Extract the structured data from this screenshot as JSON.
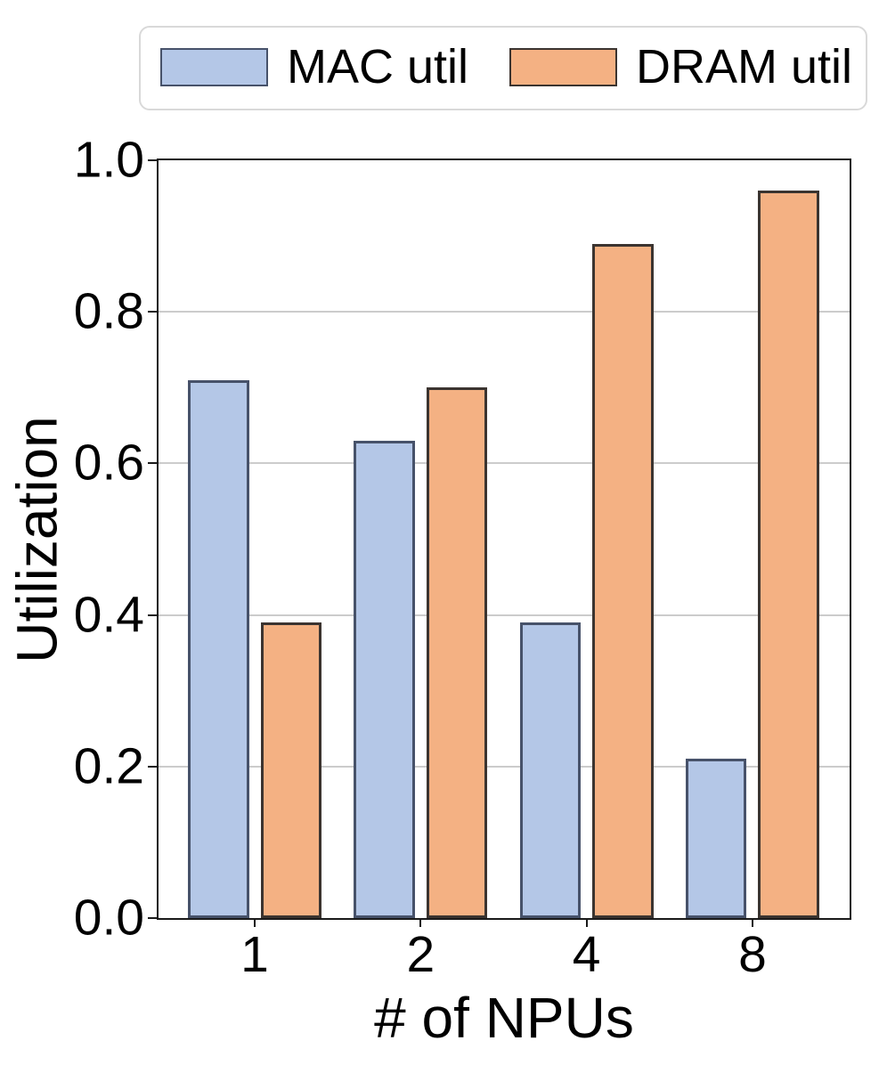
{
  "chart_data": {
    "type": "bar",
    "title": "",
    "categories": [
      "1",
      "2",
      "4",
      "8"
    ],
    "series": [
      {
        "name": "MAC util",
        "values": [
          0.71,
          0.63,
          0.39,
          0.21
        ],
        "fill": "#b4c7e7",
        "edge": "#47526a"
      },
      {
        "name": "DRAM util",
        "values": [
          0.39,
          0.7,
          0.89,
          0.96
        ],
        "fill": "#f4b183",
        "edge": "#3b3430"
      }
    ],
    "xlabel": "# of NPUs",
    "ylabel": "Utilization",
    "ylim": [
      0.0,
      1.0
    ],
    "yticks": [
      0.0,
      0.2,
      0.4,
      0.6,
      0.8,
      1.0
    ],
    "grid": true,
    "legend_position": "top-center",
    "colors": {
      "spine": "#1a1a1a",
      "gridline": "#cccccc",
      "legend_border": "#d9d9d9",
      "text": "#000000"
    }
  }
}
